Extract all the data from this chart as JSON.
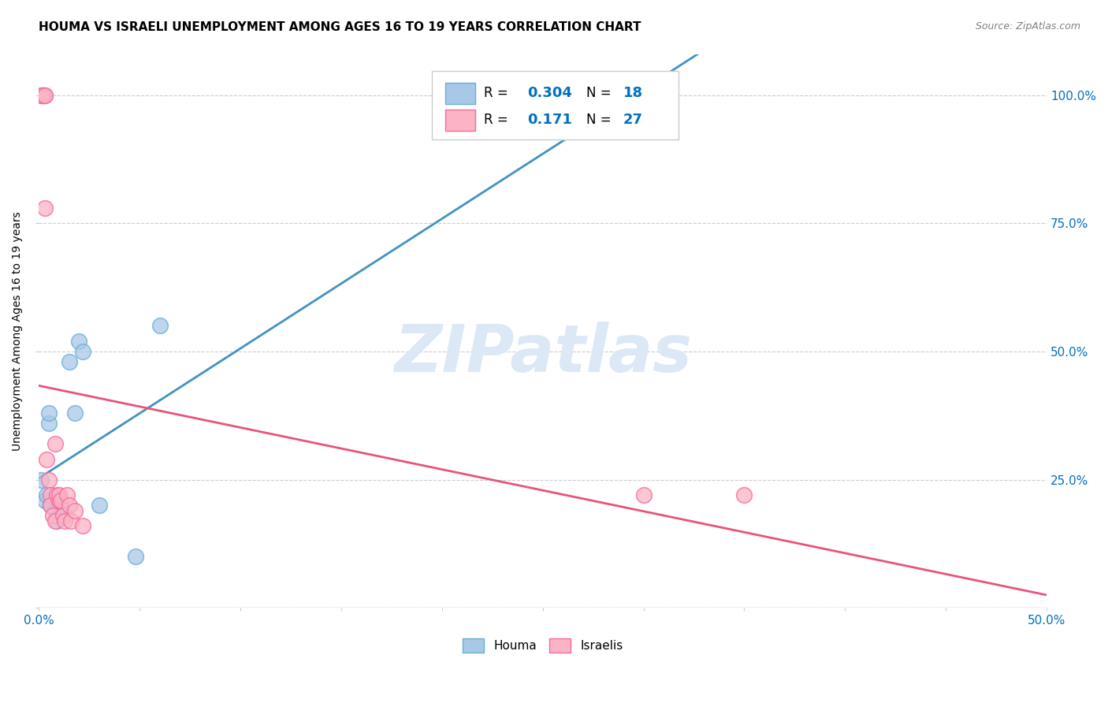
{
  "title": "HOUMA VS ISRAELI UNEMPLOYMENT AMONG AGES 16 TO 19 YEARS CORRELATION CHART",
  "source": "Source: ZipAtlas.com",
  "ylabel": "Unemployment Among Ages 16 to 19 years",
  "xlim": [
    0.0,
    0.5
  ],
  "ylim": [
    0.0,
    1.08
  ],
  "xtick_positions": [
    0.0,
    0.05,
    0.1,
    0.15,
    0.2,
    0.25,
    0.3,
    0.35,
    0.4,
    0.45,
    0.5
  ],
  "xtick_labels_show": {
    "0.0": "0.0%",
    "0.50": "50.0%"
  },
  "ytick_positions": [
    0.0,
    0.25,
    0.5,
    0.75,
    1.0
  ],
  "ytick_labels": [
    "",
    "25.0%",
    "50.0%",
    "75.0%",
    "100.0%"
  ],
  "houma_color": "#a8c8e8",
  "houma_edge": "#6aaed6",
  "israeli_color": "#fbb4c4",
  "israeli_edge": "#f768a1",
  "houma_line_color": "#4393c3",
  "israeli_line_color": "#e8547a",
  "dashed_line_color": "#a0b8d8",
  "houma_R": 0.304,
  "houma_N": 18,
  "israeli_R": 0.171,
  "israeli_N": 27,
  "legend_color": "#0070c0",
  "watermark": "ZIPatlas",
  "watermark_color": "#dce8f5",
  "houma_x": [
    0.001,
    0.003,
    0.004,
    0.005,
    0.005,
    0.006,
    0.008,
    0.009,
    0.01,
    0.012,
    0.013,
    0.015,
    0.018,
    0.02,
    0.022,
    0.03,
    0.048,
    0.06
  ],
  "houma_y": [
    0.25,
    0.21,
    0.22,
    0.36,
    0.38,
    0.2,
    0.19,
    0.17,
    0.2,
    0.19,
    0.18,
    0.48,
    0.38,
    0.52,
    0.5,
    0.2,
    0.1,
    0.55
  ],
  "israeli_x": [
    0.001,
    0.002,
    0.002,
    0.003,
    0.003,
    0.004,
    0.005,
    0.006,
    0.006,
    0.007,
    0.008,
    0.008,
    0.009,
    0.01,
    0.01,
    0.011,
    0.012,
    0.013,
    0.014,
    0.015,
    0.016,
    0.018,
    0.022,
    0.3,
    0.35,
    0.002,
    0.003
  ],
  "israeli_y": [
    1.0,
    1.0,
    1.0,
    1.0,
    0.78,
    0.29,
    0.25,
    0.22,
    0.2,
    0.18,
    0.17,
    0.32,
    0.22,
    0.21,
    0.22,
    0.21,
    0.18,
    0.17,
    0.22,
    0.2,
    0.17,
    0.19,
    0.16,
    0.22,
    0.22,
    1.0,
    1.0
  ],
  "grid_color": "#cccccc",
  "tick_color": "#0070c0",
  "background_color": "#ffffff",
  "title_fontsize": 11,
  "source_fontsize": 9
}
